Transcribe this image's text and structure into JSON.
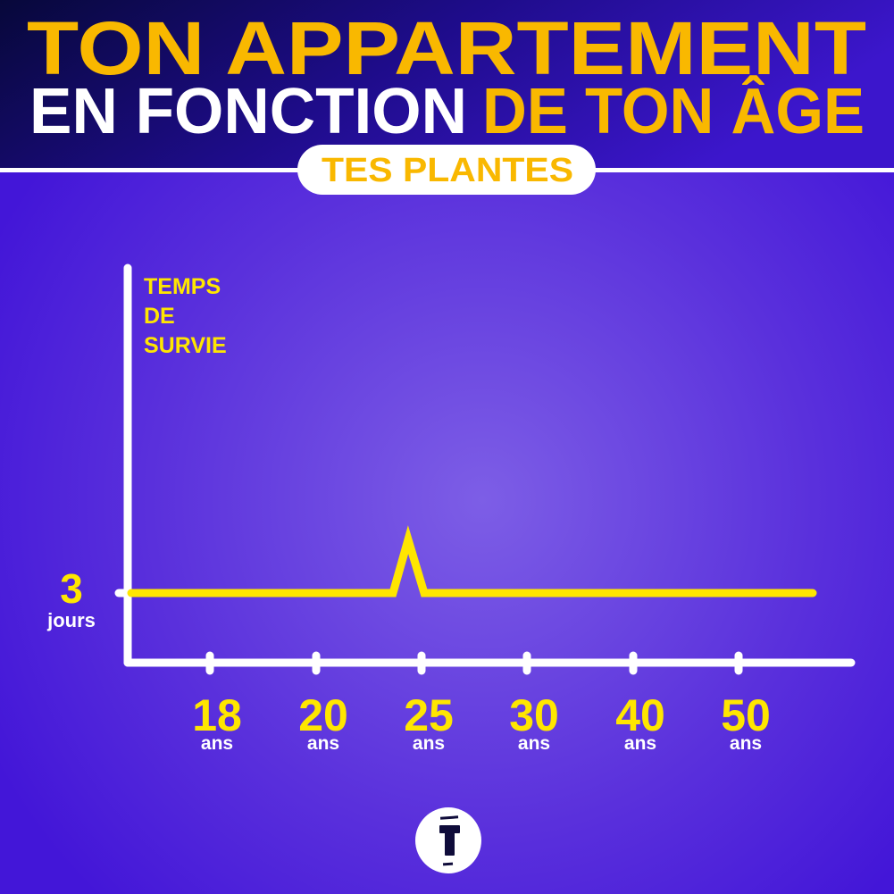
{
  "header": {
    "line1": "TON APPARTEMENT",
    "line2_white": "EN FONCTION",
    "line2_yellow": "DE TON ÂGE",
    "pill": "TES PLANTES"
  },
  "colors": {
    "header_yellow": "#f9b800",
    "line_yellow": "#ffe600",
    "axis": "#ffffff",
    "background_center": "#7d5ee6",
    "background_edge": "#4316d8",
    "header_dark": "#07083a"
  },
  "chart_data": {
    "type": "line",
    "ylabel": "TEMPS DE SURVIE",
    "y_ticks": [
      {
        "value": 3,
        "label": "3",
        "unit": "jours"
      }
    ],
    "categories": [
      {
        "value": "18",
        "unit": "ans"
      },
      {
        "value": "20",
        "unit": "ans"
      },
      {
        "value": "25",
        "unit": "ans"
      },
      {
        "value": "30",
        "unit": "ans"
      },
      {
        "value": "40",
        "unit": "ans"
      },
      {
        "value": "50",
        "unit": "ans"
      }
    ],
    "series": [
      {
        "values": [
          3,
          3,
          3,
          3,
          3,
          3
        ],
        "spike": {
          "near": "25",
          "peak": 5.3
        }
      }
    ],
    "grid": false
  },
  "logo": {
    "icon": "t-logo-icon"
  }
}
